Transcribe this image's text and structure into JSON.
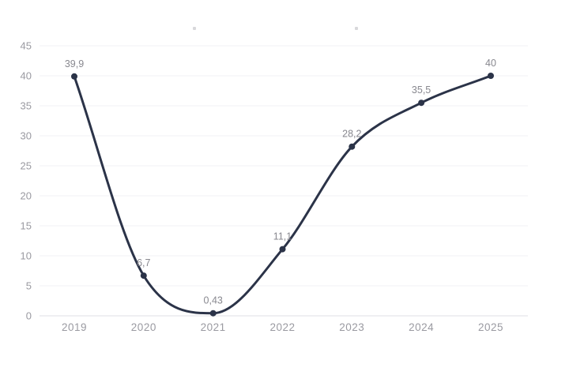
{
  "chart_data": {
    "type": "line",
    "title": "",
    "xlabel": "",
    "ylabel": "",
    "categories": [
      "2019",
      "2020",
      "2021",
      "2022",
      "2023",
      "2024",
      "2025"
    ],
    "values": [
      39.9,
      6.7,
      0.43,
      11.1,
      28.2,
      35.5,
      40
    ],
    "point_labels": [
      "39,9",
      "6,7",
      "0,43",
      "11,1",
      "28,2",
      "35,5",
      "40"
    ],
    "ylim": [
      0,
      45
    ],
    "ytick_step": 5,
    "ytick_labels": [
      "0",
      "5",
      "10",
      "15",
      "20",
      "25",
      "30",
      "35",
      "40",
      "45"
    ],
    "grid": true,
    "legend": false,
    "colors": {
      "line": "#2b3348",
      "marker": "#2b3348",
      "point_label": "#88888f",
      "axis_tick_label": "#9a9aa1",
      "gridline": "#f2f2f5",
      "baseline": "#dfdfe4",
      "background": "#ffffff"
    }
  }
}
